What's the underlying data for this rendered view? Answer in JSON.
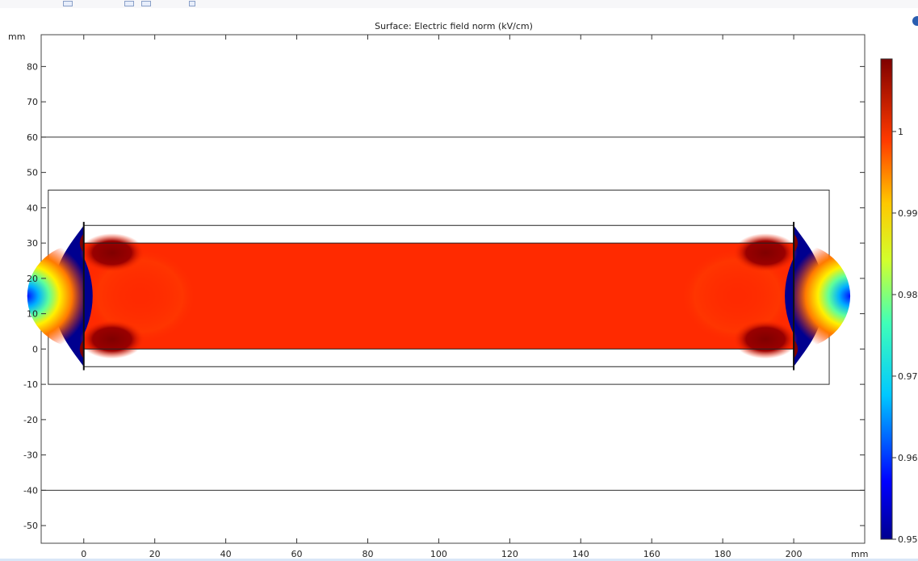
{
  "chart_data": {
    "type": "heatmap",
    "title": "Surface: Electric field norm (kV/cm)",
    "x_unit": "mm",
    "y_unit": "mm",
    "xlim": [
      -12,
      220
    ],
    "ylim": [
      -55,
      89
    ],
    "x_ticks": [
      0,
      20,
      40,
      60,
      80,
      100,
      120,
      140,
      160,
      180,
      200
    ],
    "y_ticks": [
      80,
      70,
      60,
      50,
      40,
      30,
      20,
      10,
      0,
      -10,
      -20,
      -30,
      -40,
      -50
    ],
    "colorbar": {
      "min": 0.95,
      "max": 1.0089,
      "ticks": [
        1,
        0.99,
        0.98,
        0.97,
        0.96,
        0.95
      ],
      "colormap": "rainbow"
    },
    "field_region": {
      "x": [
        0,
        200
      ],
      "y": [
        0,
        30
      ],
      "value": 1.003
    },
    "annotations": {
      "horizontal_lines_y": [
        60,
        -40
      ],
      "outer_box": {
        "x": [
          -10,
          210
        ],
        "y": [
          -10,
          45
        ]
      },
      "inner_box": {
        "x": [
          0,
          200
        ],
        "y": [
          -5,
          35
        ]
      }
    },
    "colors": {
      "uniform_field": "#ff2a00",
      "edge_low": "#00008f",
      "edge_high": "#7f0000"
    }
  }
}
